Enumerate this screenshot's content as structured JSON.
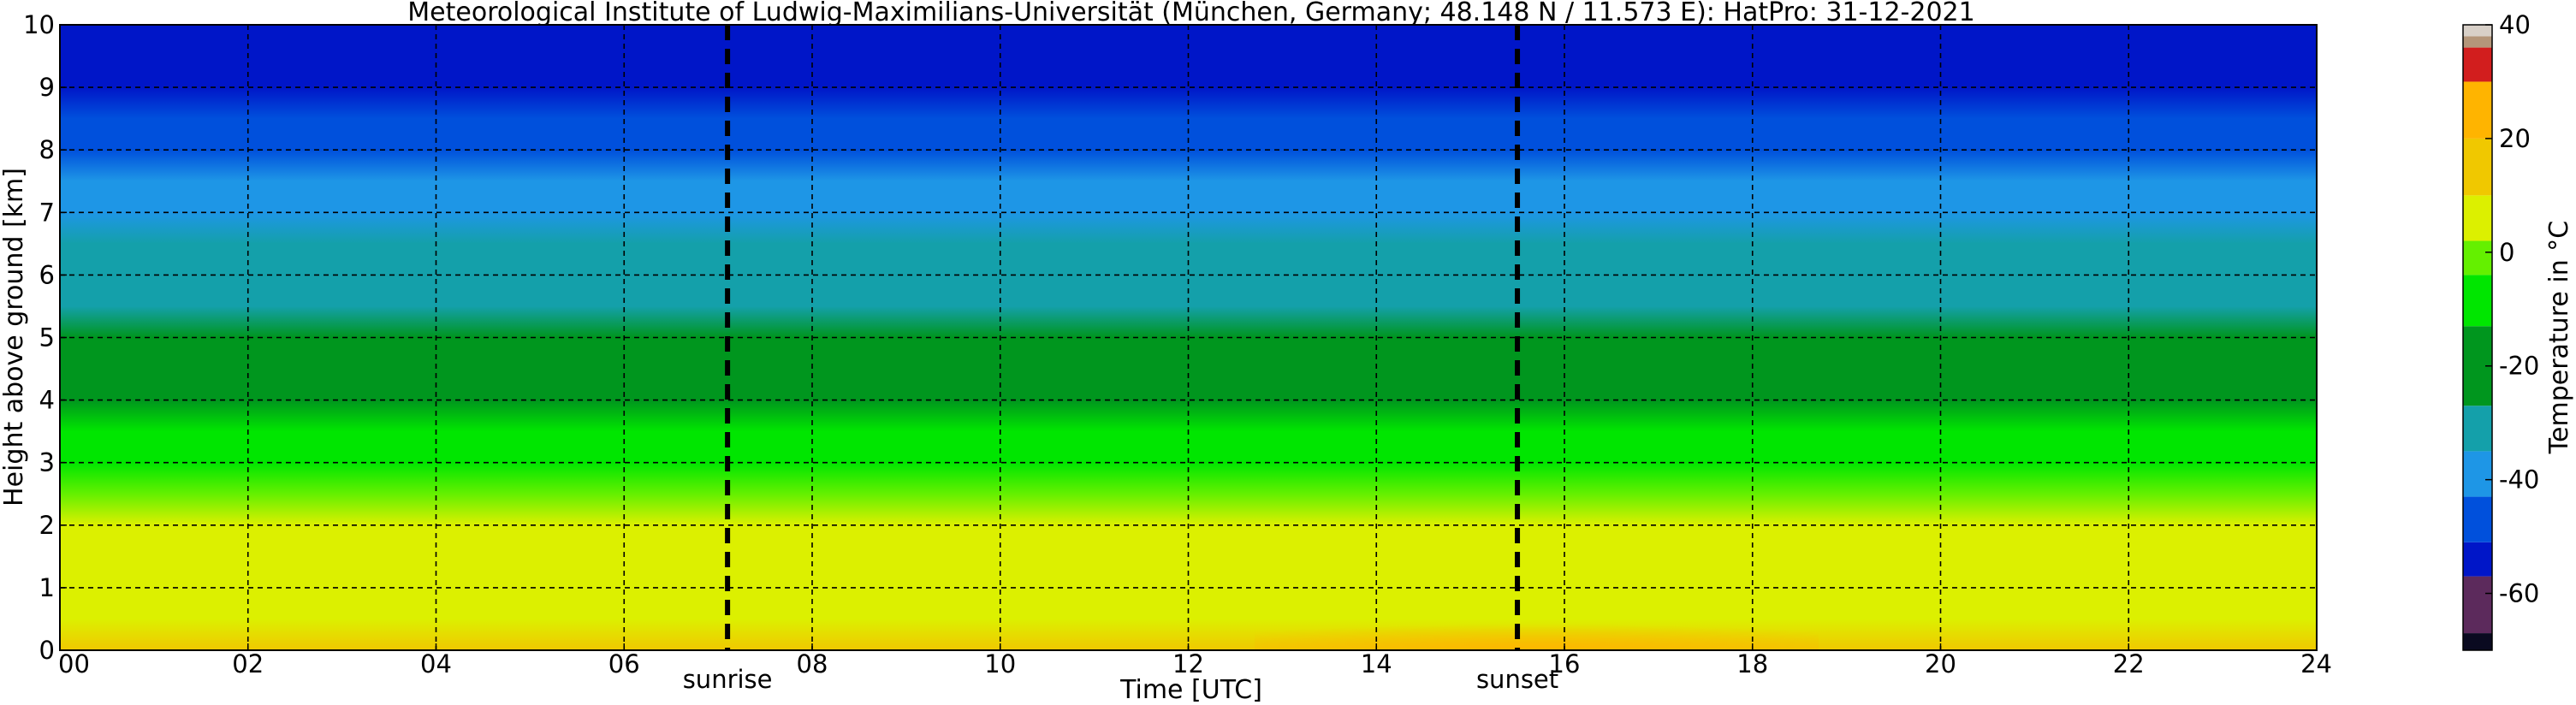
{
  "chart_data": {
    "type": "heatmap",
    "title": "Meteorological Institute of Ludwig-Maximilians-Universität (München, Germany; 48.148 N / 11.573 E):    HatPro: 31-12-2021",
    "xlabel": "Time [UTC]",
    "ylabel": "Height above ground [km]",
    "xlim": [
      0,
      24
    ],
    "ylim": [
      0,
      10
    ],
    "xticks": [
      0,
      2,
      4,
      6,
      8,
      10,
      12,
      14,
      16,
      18,
      20,
      22,
      24
    ],
    "xtick_labels": [
      "00",
      "02",
      "04",
      "06",
      "08",
      "10",
      "12",
      "14",
      "16",
      "18",
      "20",
      "22",
      "24"
    ],
    "yticks": [
      0,
      1,
      2,
      3,
      4,
      5,
      6,
      7,
      8,
      9,
      10
    ],
    "ytick_labels": [
      "0",
      "1",
      "2",
      "3",
      "4",
      "5",
      "6",
      "7",
      "8",
      "9",
      "10"
    ],
    "grid": true,
    "events": [
      {
        "label": "sunrise",
        "x": 7.1
      },
      {
        "label": "sunset",
        "x": 15.5
      }
    ],
    "colorbar": {
      "label": "Temperature in °C",
      "range": [
        -70,
        40
      ],
      "ticks": [
        -60,
        -40,
        -20,
        0,
        20,
        40
      ],
      "tick_labels": [
        "-60",
        "-40",
        "-20",
        "0",
        "20",
        "40"
      ],
      "bands": [
        {
          "from": -70,
          "to": -67,
          "color": "#0a0a20"
        },
        {
          "from": -67,
          "to": -57,
          "color": "#5c2a5c"
        },
        {
          "from": -57,
          "to": -51,
          "color": "#0016c8"
        },
        {
          "from": -51,
          "to": -43,
          "color": "#0050dc"
        },
        {
          "from": -43,
          "to": -35,
          "color": "#1e96e6"
        },
        {
          "from": -35,
          "to": -27,
          "color": "#14a0aa"
        },
        {
          "from": -27,
          "to": -13,
          "color": "#00961e"
        },
        {
          "from": -13,
          "to": -4,
          "color": "#00e600"
        },
        {
          "from": -4,
          "to": 2,
          "color": "#64f000"
        },
        {
          "from": 2,
          "to": 10,
          "color": "#dcf000"
        },
        {
          "from": 10,
          "to": 20,
          "color": "#f0c800"
        },
        {
          "from": 20,
          "to": 30,
          "color": "#ffb400"
        },
        {
          "from": 30,
          "to": 36,
          "color": "#d21e1e"
        },
        {
          "from": 36,
          "to": 38,
          "color": "#b4967a"
        },
        {
          "from": 38,
          "to": 40,
          "color": "#d8d0c8"
        }
      ]
    },
    "temperature_profile": {
      "heights_km": [
        0,
        0.5,
        1,
        1.5,
        2,
        2.5,
        3,
        3.5,
        4,
        4.5,
        5,
        5.5,
        6,
        6.5,
        7,
        7.5,
        8,
        8.5,
        9,
        9.5,
        10
      ],
      "temperatures_c": [
        12,
        10,
        8,
        6,
        3,
        -2,
        -6,
        -10,
        -14,
        -18,
        -23,
        -27,
        -30,
        -34,
        -38,
        -42,
        -46,
        -50,
        -53,
        -55,
        -56
      ]
    },
    "warm_layers": [
      {
        "time_from": 12,
        "time_to": 17.5,
        "height_to": 0.6,
        "temperature_c": 19
      }
    ]
  }
}
